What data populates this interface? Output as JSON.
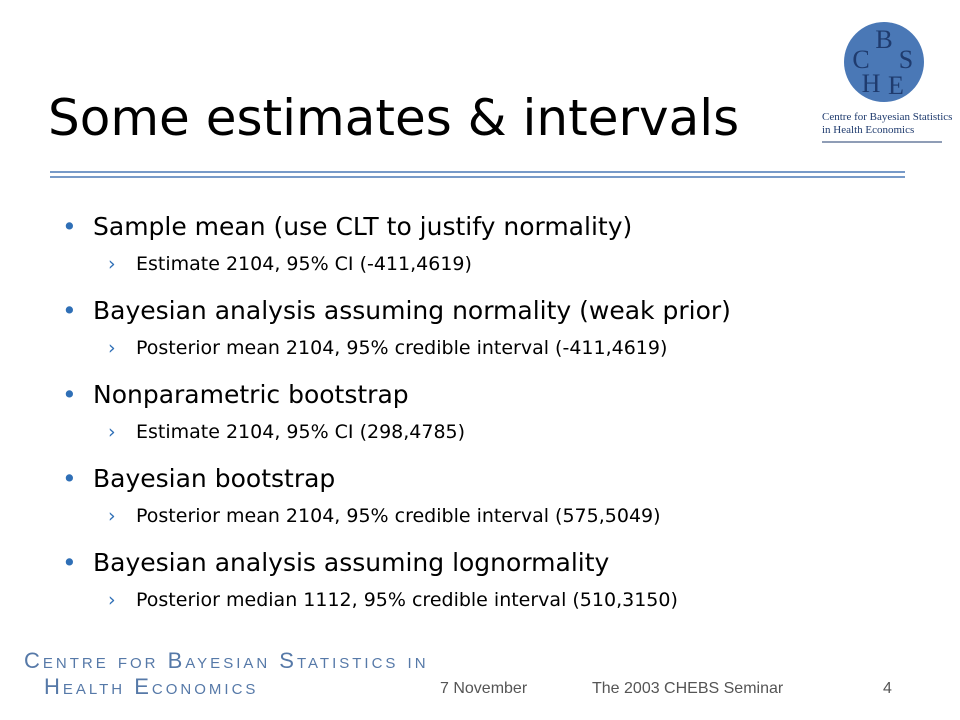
{
  "logo": {
    "letters": [
      "C",
      "B",
      "S",
      "H",
      "E"
    ],
    "caption": [
      "Centre for Bayesian Statistics",
      "in Health Economics"
    ]
  },
  "title": "Some estimates & intervals",
  "bullets": [
    {
      "text": "Sample mean (use CLT to justify normality)",
      "sub": "Estimate 2104, 95% CI (-411,4619)"
    },
    {
      "text": "Bayesian analysis assuming normality (weak prior)",
      "sub": "Posterior mean 2104, 95% credible interval (-411,4619)"
    },
    {
      "text": "Nonparametric bootstrap",
      "sub": "Estimate 2104, 95% CI (298,4785)"
    },
    {
      "text": "Bayesian bootstrap",
      "sub": "Posterior mean 2104, 95% credible interval (575,5049)"
    },
    {
      "text": "Bayesian analysis assuming lognormality",
      "sub": "Posterior median 1112, 95% credible interval (510,3150)"
    }
  ],
  "footer": {
    "logo": [
      "Centre for Bayesian Statistics in",
      "Health Economics"
    ],
    "date": "7 November",
    "event": "The 2003 CHEBS Seminar",
    "page": "4"
  }
}
